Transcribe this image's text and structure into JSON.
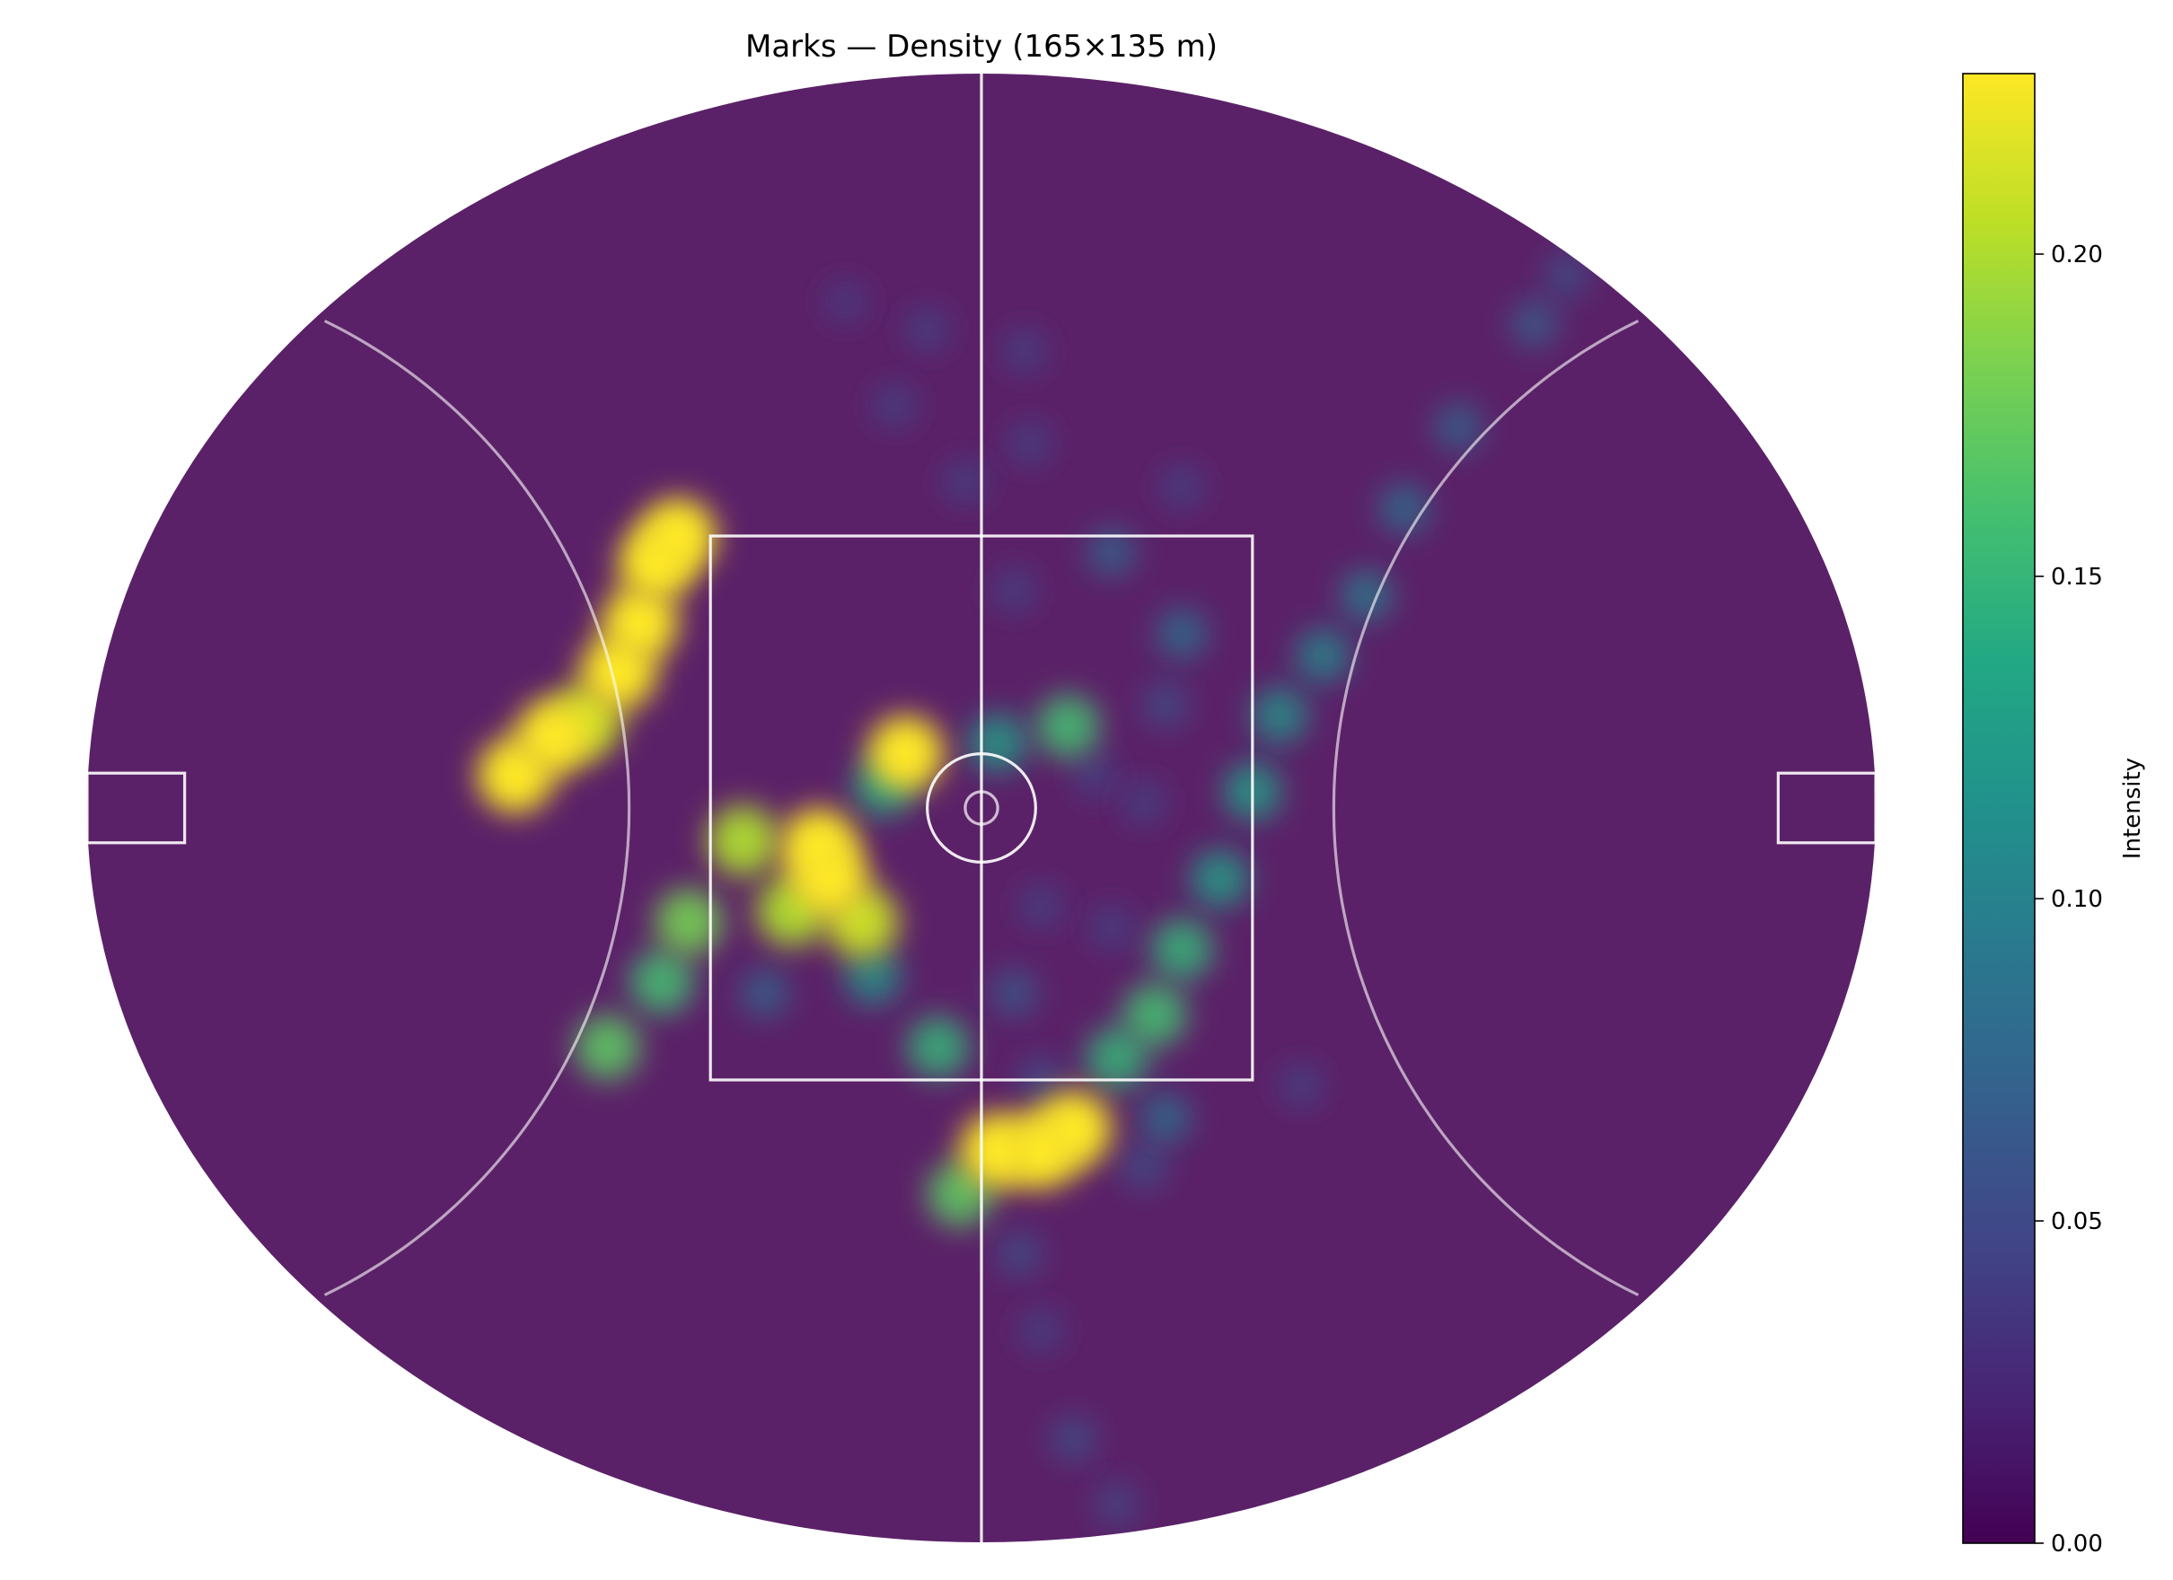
{
  "chart_data": {
    "type": "heatmap",
    "title": "Marks — Density (165×135 m)",
    "field": {
      "length_m": 165,
      "width_m": 135,
      "shape": "oval",
      "markings": [
        "centre-line",
        "centre-square",
        "centre-circle",
        "centre-dot",
        "arcs-50m",
        "goal-squares"
      ],
      "background_color": "#5b2168",
      "line_color": "#ffffff"
    },
    "colorbar": {
      "label": "Intensity",
      "min": 0.0,
      "max": 0.228,
      "ticks": [
        0.0,
        0.05,
        0.1,
        0.15,
        0.2
      ],
      "tick_labels": [
        "0.00",
        "0.05",
        "0.10",
        "0.15",
        "0.20"
      ],
      "colormap": "viridis"
    },
    "hotspots": [
      {
        "x": -43.0,
        "y": 3.0,
        "intensity": 0.228
      },
      {
        "x": -39.5,
        "y": 6.5,
        "intensity": 0.228
      },
      {
        "x": -36.5,
        "y": 8.0,
        "intensity": 0.21
      },
      {
        "x": -33.5,
        "y": 12.5,
        "intensity": 0.228
      },
      {
        "x": -31.5,
        "y": 17.0,
        "intensity": 0.228
      },
      {
        "x": -30.0,
        "y": 22.5,
        "intensity": 0.228
      },
      {
        "x": -28.0,
        "y": 25.0,
        "intensity": 0.228
      },
      {
        "x": -15.0,
        "y": -3.5,
        "intensity": 0.228
      },
      {
        "x": -14.0,
        "y": -6.5,
        "intensity": 0.228
      },
      {
        "x": -17.5,
        "y": -9.5,
        "intensity": 0.2
      },
      {
        "x": -11.0,
        "y": -10.5,
        "intensity": 0.21
      },
      {
        "x": -22.0,
        "y": -3.0,
        "intensity": 0.2
      },
      {
        "x": -27.0,
        "y": -10.5,
        "intensity": 0.18
      },
      {
        "x": -29.5,
        "y": -16.0,
        "intensity": 0.16
      },
      {
        "x": -34.5,
        "y": -22.0,
        "intensity": 0.17
      },
      {
        "x": -7.0,
        "y": 5.0,
        "intensity": 0.228
      },
      {
        "x": 8.0,
        "y": 7.5,
        "intensity": 0.16
      },
      {
        "x": 1.5,
        "y": 6.0,
        "intensity": 0.13
      },
      {
        "x": -9.0,
        "y": 2.0,
        "intensity": 0.14
      },
      {
        "x": -20.0,
        "y": -17.0,
        "intensity": 0.08
      },
      {
        "x": -10.0,
        "y": -15.5,
        "intensity": 0.12
      },
      {
        "x": -4.0,
        "y": -22.0,
        "intensity": 0.15
      },
      {
        "x": 1.5,
        "y": -31.5,
        "intensity": 0.228
      },
      {
        "x": 5.5,
        "y": -31.5,
        "intensity": 0.228
      },
      {
        "x": 8.5,
        "y": -29.5,
        "intensity": 0.228
      },
      {
        "x": -2.0,
        "y": -35.5,
        "intensity": 0.17
      },
      {
        "x": 12.5,
        "y": -23.0,
        "intensity": 0.15
      },
      {
        "x": 16.0,
        "y": -19.0,
        "intensity": 0.16
      },
      {
        "x": 18.5,
        "y": -13.0,
        "intensity": 0.15
      },
      {
        "x": 22.0,
        "y": -6.5,
        "intensity": 0.13
      },
      {
        "x": 25.0,
        "y": 1.5,
        "intensity": 0.13
      },
      {
        "x": 27.5,
        "y": 8.5,
        "intensity": 0.12
      },
      {
        "x": 31.5,
        "y": 14.0,
        "intensity": 0.11
      },
      {
        "x": 35.5,
        "y": 19.5,
        "intensity": 0.1
      },
      {
        "x": 39.0,
        "y": 27.5,
        "intensity": 0.09
      },
      {
        "x": 44.0,
        "y": 35.0,
        "intensity": 0.08
      },
      {
        "x": 51.0,
        "y": 44.5,
        "intensity": 0.075
      },
      {
        "x": 54.0,
        "y": 49.0,
        "intensity": 0.06
      },
      {
        "x": 12.0,
        "y": 23.5,
        "intensity": 0.08
      },
      {
        "x": 18.5,
        "y": 29.5,
        "intensity": 0.05
      },
      {
        "x": 18.5,
        "y": 16.0,
        "intensity": 0.09
      },
      {
        "x": 17.0,
        "y": 9.5,
        "intensity": 0.06
      },
      {
        "x": 3.0,
        "y": 20.0,
        "intensity": 0.05
      },
      {
        "x": -1.5,
        "y": 30.0,
        "intensity": 0.05
      },
      {
        "x": 4.5,
        "y": 33.5,
        "intensity": 0.05
      },
      {
        "x": 4.0,
        "y": 42.0,
        "intensity": 0.05
      },
      {
        "x": -8.0,
        "y": 37.0,
        "intensity": 0.05
      },
      {
        "x": -5.0,
        "y": 44.0,
        "intensity": 0.05
      },
      {
        "x": -12.5,
        "y": 46.5,
        "intensity": 0.045
      },
      {
        "x": 10.5,
        "y": 3.0,
        "intensity": 0.05
      },
      {
        "x": 15.0,
        "y": 0.5,
        "intensity": 0.05
      },
      {
        "x": 5.5,
        "y": -9.0,
        "intensity": 0.05
      },
      {
        "x": 12.0,
        "y": -11.0,
        "intensity": 0.05
      },
      {
        "x": 3.0,
        "y": -17.0,
        "intensity": 0.07
      },
      {
        "x": 5.5,
        "y": -25.0,
        "intensity": 0.06
      },
      {
        "x": 29.5,
        "y": -25.5,
        "intensity": 0.05
      },
      {
        "x": 17.0,
        "y": -28.5,
        "intensity": 0.09
      },
      {
        "x": 15.0,
        "y": -33.0,
        "intensity": 0.06
      },
      {
        "x": 3.5,
        "y": -41.0,
        "intensity": 0.06
      },
      {
        "x": 5.5,
        "y": -48.0,
        "intensity": 0.05
      },
      {
        "x": 8.5,
        "y": -58.0,
        "intensity": 0.06
      },
      {
        "x": 12.5,
        "y": -64.0,
        "intensity": 0.055
      }
    ]
  }
}
